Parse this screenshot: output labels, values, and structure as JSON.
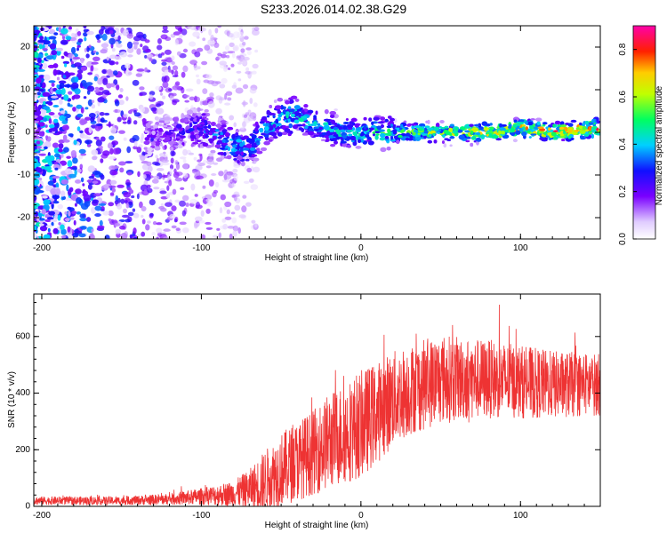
{
  "title": "S233.2026.014.02.38.G29",
  "chart_data": [
    {
      "type": "heatmap",
      "name": "spectrogram",
      "xlabel": "Height of straight line (km)",
      "ylabel": "Frequency (Hz)",
      "xlim": [
        -205,
        150
      ],
      "ylim": [
        -25,
        25
      ],
      "xticks": [
        -200,
        -100,
        0,
        100
      ],
      "yticks": [
        -20,
        -10,
        0,
        10,
        20
      ],
      "colorbar": {
        "label": "Normalized spectral amplitude",
        "range": [
          0.0,
          0.9
        ],
        "ticks": [
          0.0,
          0.2,
          0.4,
          0.6,
          0.8
        ],
        "tick_labels": [
          "0.0",
          "0.2",
          "0.4",
          "0.6",
          "0.8"
        ]
      },
      "ridge": {
        "x": [
          -130,
          -110,
          -100,
          -90,
          -80,
          -70,
          -60,
          -50,
          -40,
          -30,
          -20,
          -10,
          0,
          10,
          20,
          40,
          60,
          80,
          100,
          120,
          150
        ],
        "freq": [
          -1,
          0,
          1,
          -1,
          -3,
          -4,
          1,
          3,
          4,
          2,
          1,
          0,
          0,
          0,
          0,
          0,
          0,
          0,
          1,
          0,
          1
        ],
        "peak_amplitude": [
          0.2,
          0.3,
          0.35,
          0.4,
          0.45,
          0.4,
          0.4,
          0.45,
          0.5,
          0.45,
          0.5,
          0.5,
          0.5,
          0.55,
          0.6,
          0.65,
          0.7,
          0.75,
          0.8,
          0.85,
          0.85
        ]
      }
    },
    {
      "type": "line",
      "name": "snr",
      "xlabel": "Height of straight line (km)",
      "ylabel": "SNR (10 * v/v)",
      "xlim": [
        -205,
        150
      ],
      "ylim": [
        0,
        750
      ],
      "xticks": [
        -200,
        -100,
        0,
        100
      ],
      "yticks": [
        0,
        200,
        400,
        600
      ],
      "color": "#ee3333",
      "envelope": {
        "x": [
          -205,
          -180,
          -150,
          -120,
          -100,
          -80,
          -70,
          -60,
          -50,
          -40,
          -30,
          -20,
          -10,
          0,
          10,
          20,
          30,
          40,
          50,
          60,
          80,
          100,
          120,
          150
        ],
        "mean": [
          20,
          20,
          20,
          25,
          35,
          45,
          60,
          90,
          130,
          160,
          190,
          230,
          260,
          290,
          330,
          380,
          410,
          430,
          450,
          450,
          450,
          440,
          430,
          430
        ],
        "spread": [
          15,
          15,
          15,
          20,
          30,
          45,
          70,
          110,
          130,
          140,
          150,
          170,
          180,
          190,
          180,
          170,
          160,
          160,
          160,
          150,
          140,
          130,
          120,
          110
        ]
      }
    }
  ]
}
